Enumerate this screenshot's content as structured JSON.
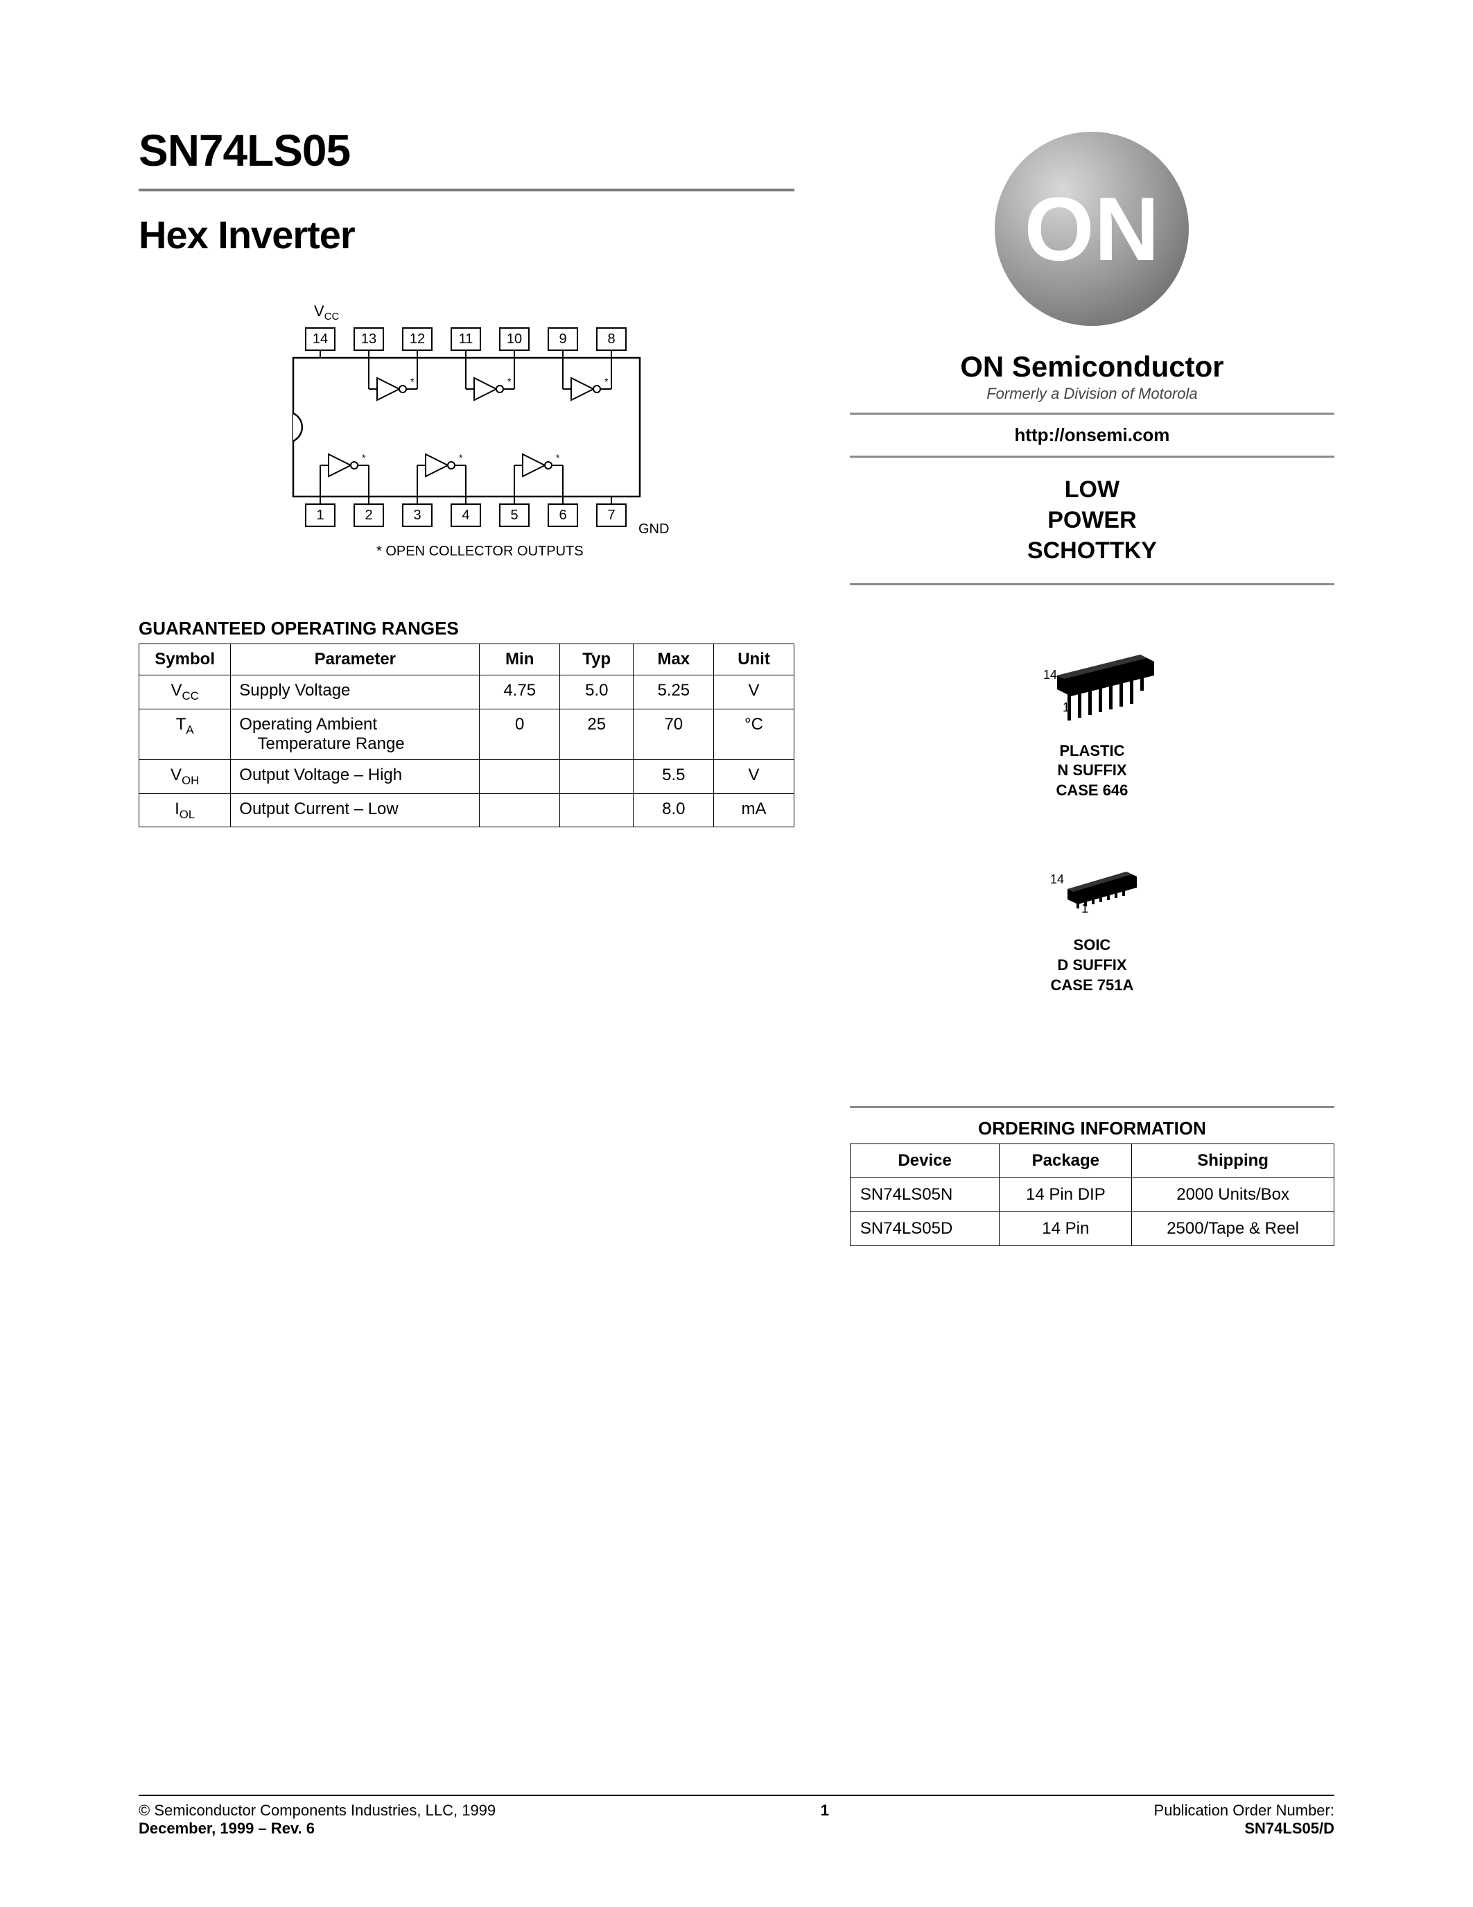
{
  "header": {
    "part_number": "SN74LS05",
    "subtitle": "Hex Inverter"
  },
  "diagram": {
    "vcc_label": "VCC",
    "gnd_label": "GND",
    "note": "* OPEN COLLECTOR OUTPUTS",
    "top_pins": [
      "14",
      "13",
      "12",
      "11",
      "10",
      "9",
      "8"
    ],
    "bottom_pins": [
      "1",
      "2",
      "3",
      "4",
      "5",
      "6",
      "7"
    ],
    "outline_color": "#000000",
    "bg_color": "#ffffff"
  },
  "operating_ranges": {
    "title": "GUARANTEED OPERATING RANGES",
    "columns": [
      "Symbol",
      "Parameter",
      "Min",
      "Typ",
      "Max",
      "Unit"
    ],
    "rows": [
      {
        "symbol": "V",
        "sub": "CC",
        "param": "Supply Voltage",
        "min": "4.75",
        "typ": "5.0",
        "max": "5.25",
        "unit": "V"
      },
      {
        "symbol": "T",
        "sub": "A",
        "param": "Operating Ambient\n   Temperature Range",
        "min": "0",
        "typ": "25",
        "max": "70",
        "unit": "°C"
      },
      {
        "symbol": "V",
        "sub": "OH",
        "param": "Output Voltage – High",
        "min": "",
        "typ": "",
        "max": "5.5",
        "unit": "V"
      },
      {
        "symbol": "I",
        "sub": "OL",
        "param": "Output Current – Low",
        "min": "",
        "typ": "",
        "max": "8.0",
        "unit": "mA"
      }
    ]
  },
  "brand": {
    "logo_text": "ON",
    "name": "ON Semiconductor",
    "tagline": "Formerly a Division of Motorola",
    "url": "http://onsemi.com",
    "logo_fill": "#888888",
    "logo_highlight": "#cccccc",
    "logo_text_color": "#ffffff"
  },
  "category": {
    "line1": "LOW",
    "line2": "POWER",
    "line3": "SCHOTTKY"
  },
  "packages": [
    {
      "pin14": "14",
      "pin1": "1",
      "l1": "PLASTIC",
      "l2": "N SUFFIX",
      "l3": "CASE 646",
      "type": "dip"
    },
    {
      "pin14": "14",
      "pin1": "1",
      "l1": "SOIC",
      "l2": "D SUFFIX",
      "l3": "CASE 751A",
      "type": "soic"
    }
  ],
  "ordering": {
    "title": "ORDERING INFORMATION",
    "columns": [
      "Device",
      "Package",
      "Shipping"
    ],
    "rows": [
      {
        "device": "SN74LS05N",
        "package": "14 Pin DIP",
        "shipping": "2000 Units/Box"
      },
      {
        "device": "SN74LS05D",
        "package": "14 Pin",
        "shipping": "2500/Tape & Reel"
      }
    ]
  },
  "footer": {
    "copyright": "©  Semiconductor Components Industries, LLC, 1999",
    "date_rev": "December, 1999 – Rev. 6",
    "page": "1",
    "pub_label": "Publication Order Number:",
    "pub_number": "SN74LS05/D"
  }
}
